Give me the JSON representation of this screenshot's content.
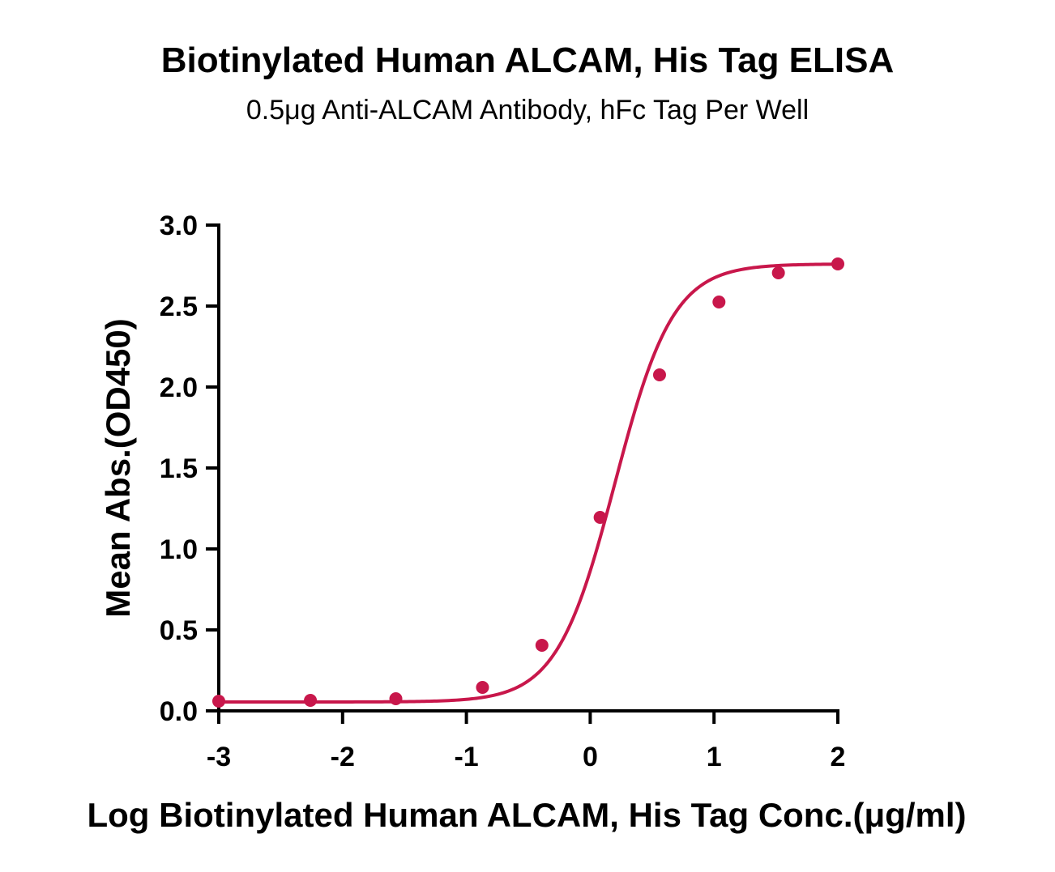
{
  "chart_data": {
    "type": "scatter",
    "title": "Biotinylated Human ALCAM, His Tag ELISA",
    "subtitle": "0.5μg Anti-ALCAM Antibody, hFc Tag Per Well",
    "xlabel": "Log Biotinylated Human ALCAM, His Tag Conc.(μg/ml)",
    "ylabel": "Mean Abs.(OD450)",
    "xlim": [
      -3,
      2
    ],
    "ylim": [
      0,
      3.0
    ],
    "xticks": [
      "-3",
      "-2",
      "-1",
      "0",
      "1",
      "2"
    ],
    "yticks": [
      "0.0",
      "0.5",
      "1.0",
      "1.5",
      "2.0",
      "2.5",
      "3.0"
    ],
    "grid": false,
    "color": "#C8174B",
    "series": [
      {
        "x": [
          -3.0,
          -2.26,
          -1.57,
          -0.87,
          -0.39,
          0.08,
          0.56,
          1.04,
          1.52,
          2.0
        ],
        "y": [
          0.06,
          0.065,
          0.075,
          0.145,
          0.405,
          1.195,
          2.075,
          2.525,
          2.705,
          2.76
        ],
        "fit": "four-parameter logistic"
      }
    ]
  }
}
